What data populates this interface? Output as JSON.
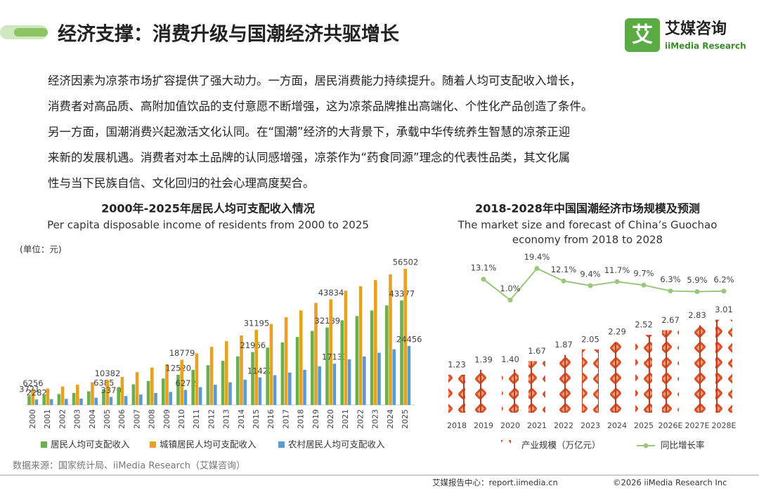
{
  "header": {
    "title": "经济支撑：消费升级与国潮经济共驱增长",
    "logo_mark": "艾",
    "logo_name": "艾媒咨询",
    "logo_sub": "iiMedia Research"
  },
  "paragraph": [
    "经济因素为凉茶市场扩容提供了强大动力。一方面，居民消费能力持续提升。随着人均可支配收入增长，",
    "消费者对高品质、高附加值饮品的支付意愿不断增强，这为凉茶品牌推出高端化、个性化产品创造了条件。",
    "另一方面，国潮消费兴起激活文化认同。在“国潮”经济的大背景下，承载中华传统养生智慧的凉茶正迎",
    "来新的发展机遇。消费者对本土品牌的认同感增强，凉茶作为“药食同源”理念的代表性品类，其文化属",
    "性与当下民族自信、文化回归的社会心理高度契合。"
  ],
  "chart_data": [
    {
      "type": "bar",
      "title": "2000年-2025年居民人均可支配收入情况",
      "subtitle": "Per capita disposable income of residents from 2000 to 2025",
      "unit": "(单位：元)",
      "categories": [
        "2000",
        "2001",
        "2002",
        "2003",
        "2004",
        "2005",
        "2006",
        "2007",
        "2008",
        "2009",
        "2010",
        "2011",
        "2012",
        "2013",
        "2014",
        "2015",
        "2016",
        "2017",
        "2018",
        "2019",
        "2020",
        "2021",
        "2022",
        "2023",
        "2024",
        "2025"
      ],
      "series": [
        {
          "name": "居民人均可支配收入",
          "color": "#6ab04c",
          "values": [
            3721,
            4070,
            4532,
            5007,
            5661,
            6385,
            7229,
            8584,
            9957,
            10977,
            12520,
            14551,
            16510,
            18311,
            20167,
            21966,
            23821,
            25974,
            28228,
            30733,
            32189,
            35128,
            36883,
            39218,
            41314,
            43377
          ],
          "value_labels": [
            "3721",
            null,
            null,
            null,
            null,
            "6385",
            null,
            null,
            null,
            null,
            "12520",
            null,
            null,
            null,
            null,
            "21966",
            null,
            null,
            null,
            null,
            "32189",
            null,
            null,
            null,
            null,
            "43377"
          ]
        },
        {
          "name": "城镇居民人均可支配收入",
          "color": "#e5a320",
          "values": [
            6256,
            6824,
            7652,
            8406,
            9335,
            10382,
            11620,
            13603,
            15549,
            16901,
            18779,
            21427,
            24127,
            26467,
            28844,
            31195,
            33616,
            36396,
            39251,
            42359,
            43834,
            47412,
            49283,
            51821,
            54188,
            56502
          ],
          "value_labels": [
            "6256",
            null,
            null,
            null,
            null,
            "10382",
            null,
            null,
            null,
            null,
            "18779",
            null,
            null,
            null,
            null,
            "31195",
            null,
            null,
            null,
            null,
            "43834",
            null,
            null,
            null,
            null,
            "56502"
          ]
        },
        {
          "name": "农村居民人均可支配收入",
          "color": "#5b9bd5",
          "values": [
            2282,
            2407,
            2529,
            2690,
            3027,
            3370,
            3731,
            4327,
            4999,
            5435,
            6272,
            7394,
            8389,
            9430,
            10489,
            11422,
            12363,
            13432,
            14617,
            16021,
            17131,
            18931,
            20133,
            21691,
            23119,
            24456
          ],
          "value_labels": [
            "2282",
            null,
            null,
            null,
            null,
            "3370",
            null,
            null,
            null,
            null,
            "6272",
            null,
            null,
            null,
            null,
            "11422",
            null,
            null,
            null,
            null,
            "17131",
            null,
            null,
            null,
            null,
            "24456"
          ]
        }
      ]
    },
    {
      "type": "combo",
      "title": "2018-2028年中国国潮经济市场规模及预测",
      "subtitle": [
        "The market size and forecast of China’s Guochao",
        "economy from 2018 to 2028"
      ],
      "categories": [
        "2018",
        "2019",
        "2020",
        "2021",
        "2022",
        "2023",
        "2024",
        "2025",
        "2026E",
        "2027E",
        "2028E"
      ],
      "series": [
        {
          "name": "产业规模（万亿元）",
          "color": "#d8502a",
          "values": [
            1.23,
            1.39,
            1.4,
            1.67,
            1.87,
            2.05,
            2.29,
            2.52,
            2.67,
            2.83,
            3.01
          ],
          "value_labels": [
            "1.23",
            "1.39",
            "1.40",
            "1.67",
            "1.87",
            "2.05",
            "2.29",
            "2.52",
            "2.67",
            "2.83",
            "3.01"
          ]
        },
        {
          "name": "同比增长率",
          "color": "#9bc77a",
          "axis": "y2",
          "values": [
            null,
            13.1,
            1.0,
            19.4,
            12.1,
            9.4,
            11.7,
            9.7,
            6.3,
            5.9,
            6.2
          ],
          "value_labels": [
            null,
            "13.1%",
            "1.0%",
            "19.4%",
            "12.1%",
            "9.4%",
            "11.7%",
            "9.7%",
            "6.3%",
            "5.9%",
            "6.2%"
          ]
        }
      ]
    }
  ],
  "source": "数据来源：国家统计局、iiMedia Research（艾媒咨询）",
  "footer": {
    "left": "艾媒报告中心：report.iimedia.cn",
    "right": "©2026  iiMedia Research  Inc"
  }
}
